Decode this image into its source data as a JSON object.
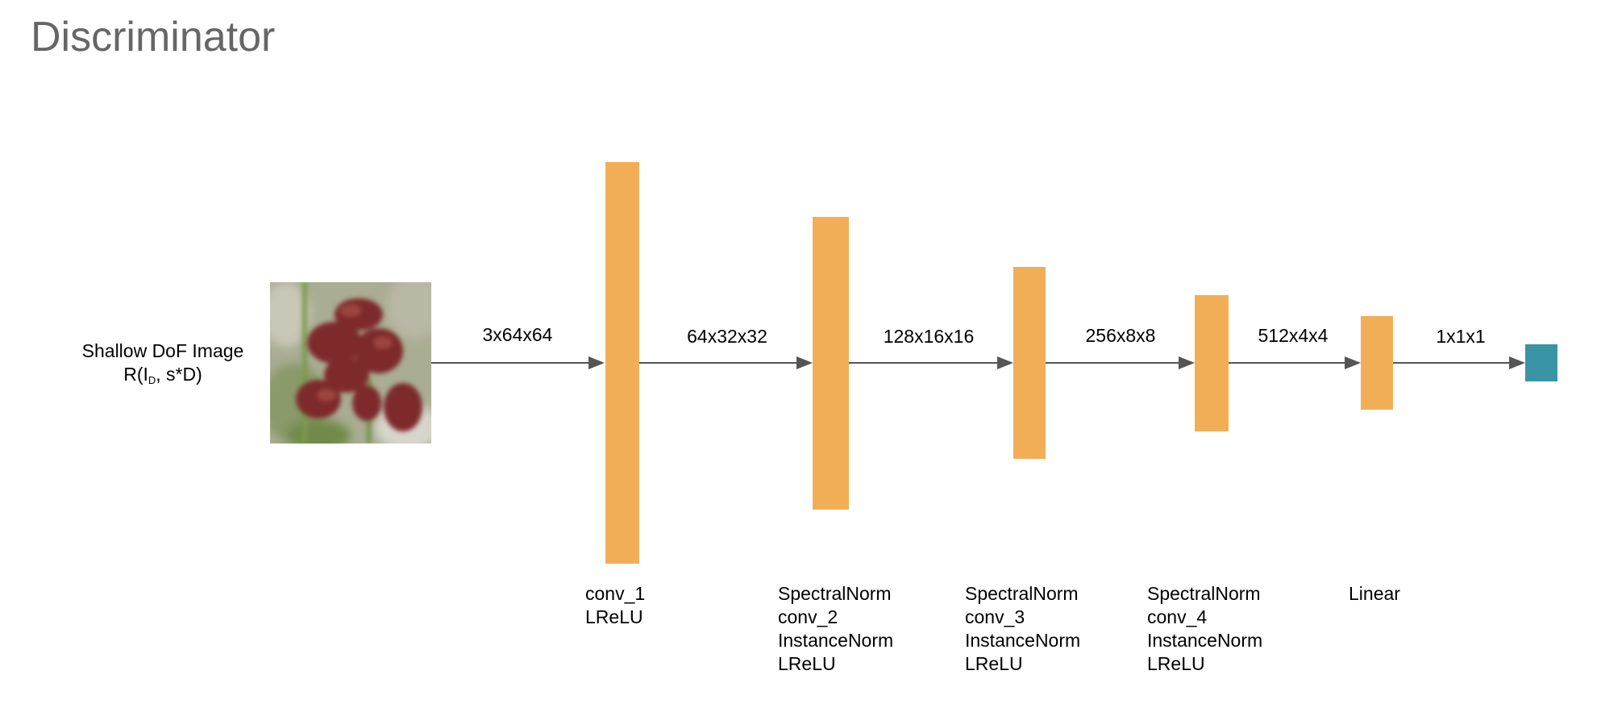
{
  "title": "Discriminator",
  "input": {
    "label_line1": "Shallow DoF Image",
    "label_line2_prefix": "R(I",
    "label_line2_sub": "D",
    "label_line2_suffix": ", s*D)"
  },
  "dimensions": [
    "3x64x64",
    "64x32x32",
    "128x16x16",
    "256x8x8",
    "512x4x4",
    "1x1x1"
  ],
  "layers": [
    {
      "name": "layer-1",
      "ops": [
        "conv_1",
        "LReLU"
      ]
    },
    {
      "name": "layer-2",
      "ops": [
        "SpectralNorm",
        "conv_2",
        "InstanceNorm",
        "LReLU"
      ]
    },
    {
      "name": "layer-3",
      "ops": [
        "SpectralNorm",
        "conv_3",
        "InstanceNorm",
        "LReLU"
      ]
    },
    {
      "name": "layer-4",
      "ops": [
        "SpectralNorm",
        "conv_4",
        "InstanceNorm",
        "LReLU"
      ]
    },
    {
      "name": "layer-5",
      "ops": [
        "Linear"
      ]
    }
  ],
  "colors": {
    "block": "#f2ae56",
    "output": "#3b93a6",
    "arrow": "#555555",
    "title": "#666666"
  }
}
